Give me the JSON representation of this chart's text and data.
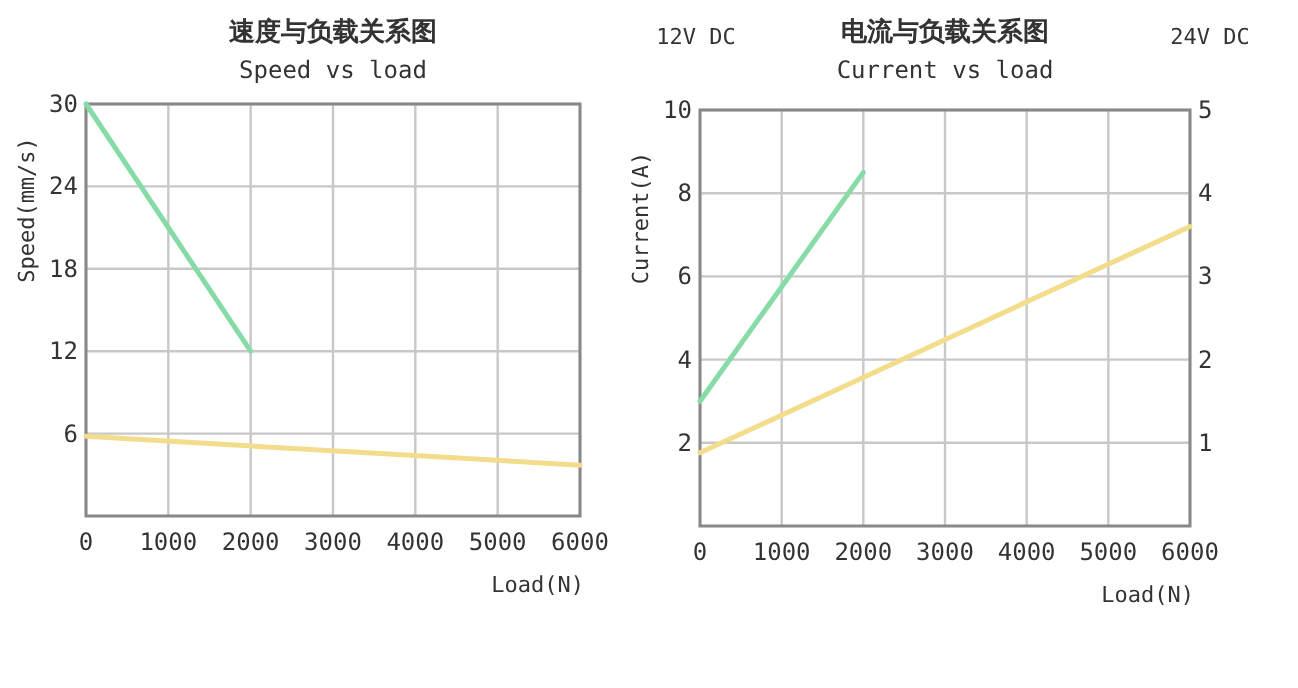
{
  "chart_data": [
    {
      "type": "line",
      "title": "速度与负载关系图",
      "subtitle": "Speed vs load",
      "xlabel": "Load(N)",
      "ylabel": "Speed(mm/s)",
      "xlim": [
        0,
        6000
      ],
      "xticks": [
        0,
        1000,
        2000,
        3000,
        4000,
        5000,
        6000
      ],
      "ylim": [
        0,
        30
      ],
      "yticks": [
        6,
        12,
        18,
        24,
        30
      ],
      "grid": true,
      "series": [
        {
          "color": "#86dba6",
          "x": [
            0,
            2000
          ],
          "values": [
            30,
            12
          ]
        },
        {
          "color": "#f3dc8c",
          "x": [
            0,
            6000
          ],
          "values": [
            5.8,
            3.7
          ]
        }
      ]
    },
    {
      "type": "line",
      "title": "电流与负载关系图",
      "subtitle": "Current vs load",
      "xlabel": "Load(N)",
      "ylabel": "Current(A)",
      "annotations": [
        "12V DC",
        "24V DC"
      ],
      "xlim": [
        0,
        6000
      ],
      "xticks": [
        0,
        1000,
        2000,
        3000,
        4000,
        5000,
        6000
      ],
      "ylim": [
        0,
        10
      ],
      "yticks": [
        2,
        4,
        6,
        8,
        10
      ],
      "y2lim": [
        0,
        5
      ],
      "y2ticks": [
        1,
        2,
        3,
        4,
        5
      ],
      "grid": true,
      "series": [
        {
          "color": "#86dba6",
          "x": [
            0,
            2000
          ],
          "values": [
            3.0,
            8.5
          ]
        },
        {
          "color": "#f3dc8c",
          "axis": "y2",
          "x": [
            0,
            6000
          ],
          "values": [
            0.88,
            3.6
          ]
        }
      ]
    }
  ]
}
